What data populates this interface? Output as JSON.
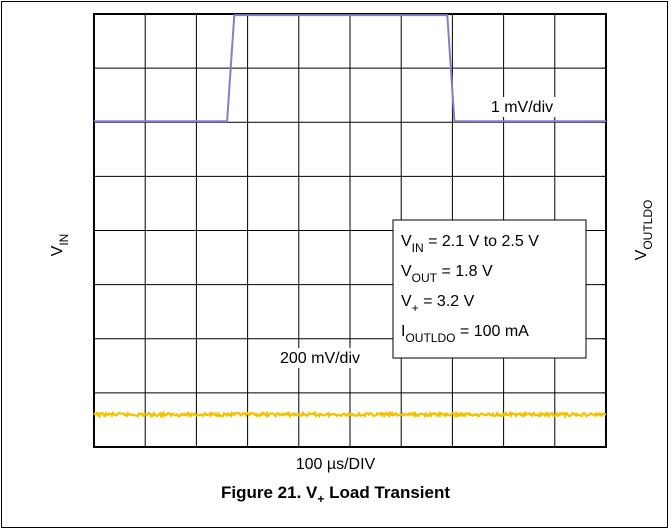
{
  "chart_data": {
    "type": "line",
    "title": "Figure 21. V+ Load Transient",
    "caption": {
      "prefix": "Figure 21. V",
      "sub": "+",
      "suffix": " Load Transient"
    },
    "xlabel": "100 µs/DIV",
    "grid": true,
    "grid_divisions": {
      "x": 10,
      "y": 8
    },
    "xlim": [
      0,
      10
    ],
    "ylim": [
      0,
      8
    ],
    "left_axis": {
      "main": "V",
      "sub": "IN"
    },
    "right_axis": {
      "main": "V",
      "sub": "OUTLDO"
    },
    "series": [
      {
        "color": "#8080c8",
        "scale_label": "1 mV/div",
        "x": [
          0,
          2.6,
          2.74,
          6.9,
          7.04,
          10
        ],
        "y": [
          6.02,
          6.02,
          7.98,
          7.98,
          6.02,
          6.02
        ]
      },
      {
        "color": "#f2c200",
        "scale_label": "200 mV/div",
        "x": [
          0,
          10
        ],
        "y": [
          0.6,
          0.6
        ]
      }
    ],
    "conditions": [
      {
        "main": "V",
        "sub": "IN",
        "rest": " = 2.1 V to 2.5 V"
      },
      {
        "main": "V",
        "sub": "OUT",
        "rest": " = 1.8 V"
      },
      {
        "main": "V",
        "sub": "+",
        "rest": " = 3.2 V"
      },
      {
        "main": "I",
        "sub": "OUTLDO",
        "rest": " = 100 mA"
      }
    ]
  }
}
